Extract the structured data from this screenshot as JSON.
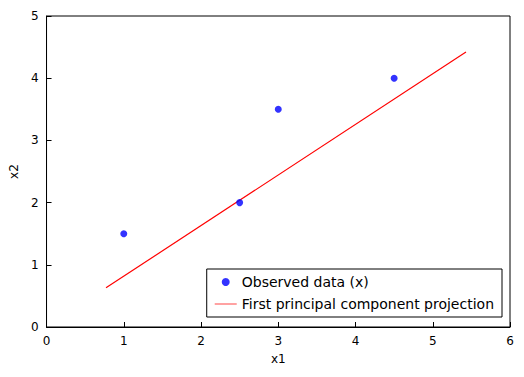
{
  "chart_data": {
    "type": "scatter",
    "x_label": "x1",
    "y_label": "x2",
    "xlim": [
      0,
      6
    ],
    "xticks": [
      0,
      1,
      2,
      3,
      4,
      5,
      6
    ],
    "ylim": [
      0,
      5
    ],
    "yticks": [
      0,
      1,
      2,
      3,
      4,
      5
    ],
    "grid": false,
    "legend": "lower right",
    "series": [
      {
        "name": "Observed data (x)",
        "type": "scatter",
        "marker": "circle",
        "color": "#0000ff",
        "x": [
          1,
          2.5,
          3,
          4.5
        ],
        "values": [
          1.5,
          2,
          3.5,
          4
        ]
      },
      {
        "name": "First principal component projection",
        "type": "line",
        "line_style": "solid",
        "color": "#ff0000",
        "x": [
          0.77,
          5.43
        ],
        "values": [
          0.63,
          4.42
        ]
      }
    ]
  }
}
